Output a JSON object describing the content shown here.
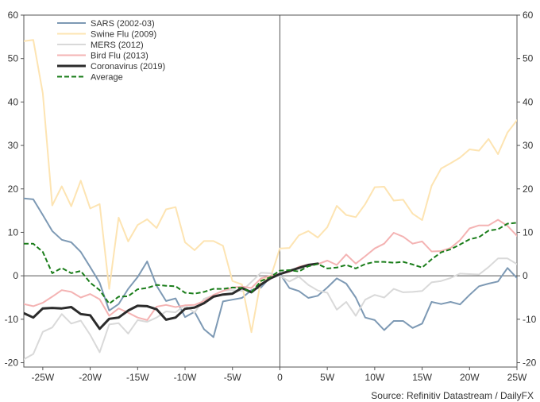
{
  "chart_data": {
    "type": "line",
    "source": "Source: Refinitiv Datastream / DailyFX",
    "xlim": [
      -27,
      25
    ],
    "ylim": [
      -21,
      60
    ],
    "x_ticks": [
      -25,
      -20,
      -15,
      -10,
      -5,
      0,
      5,
      10,
      15,
      20,
      25
    ],
    "x_tick_labels": [
      "-25W",
      "-20W",
      "-15W",
      "-10W",
      "-5W",
      "0",
      "5W",
      "10W",
      "15W",
      "20W",
      "25W"
    ],
    "y_ticks": [
      -20,
      -10,
      0,
      10,
      20,
      30,
      40,
      50,
      60
    ],
    "y_tick_labels": [
      "-20",
      "-10",
      "0",
      "10",
      "20",
      "30",
      "40",
      "50",
      "60"
    ],
    "grid": false,
    "zero_lines": true,
    "legend_position": "top-left",
    "series": [
      {
        "name": "SARS (2002-03)",
        "color": "#7d99b4",
        "style": "solid",
        "width": 2,
        "x": [
          -27,
          -26,
          -25,
          -24,
          -23,
          -22,
          -21,
          -20,
          -19,
          -18,
          -17,
          -16,
          -15,
          -14,
          -13,
          -12,
          -11,
          -10,
          -9,
          -8,
          -7,
          -6,
          -5,
          -4,
          -3,
          -2,
          -1,
          0,
          1,
          2,
          3,
          4,
          5,
          6,
          7,
          8,
          9,
          10,
          11,
          12,
          13,
          14,
          15,
          16,
          17,
          18,
          19,
          20,
          21,
          22,
          23,
          24,
          25
        ],
        "y": [
          17.8,
          17.6,
          14,
          10.3,
          8.3,
          7.7,
          5.5,
          2,
          -1.6,
          -8,
          -6.5,
          -3,
          -0.3,
          3.3,
          -2.3,
          -5.8,
          -5.2,
          -9.5,
          -8.3,
          -12.3,
          -14.1,
          -5.9,
          -5.5,
          -5.1,
          -3.3,
          -2.7,
          -0.3,
          0.5,
          -2.8,
          -3.5,
          -5.1,
          -4.6,
          -2.7,
          -0.6,
          -1.8,
          -5,
          -9.6,
          -10.2,
          -12.5,
          -10.4,
          -10.4,
          -12,
          -11,
          -6,
          -6.5,
          -6,
          -6.6,
          -4.4,
          -2.4,
          -1.8,
          -1.3,
          1.8,
          -0.5
        ]
      },
      {
        "name": "Swine Flu (2009)",
        "color": "#fde4b2",
        "style": "solid",
        "width": 2,
        "x": [
          -27,
          -26,
          -25,
          -24,
          -23,
          -22,
          -21,
          -20,
          -19,
          -18,
          -17,
          -16,
          -15,
          -14,
          -13,
          -12,
          -11,
          -10,
          -9,
          -8,
          -7,
          -6,
          -5,
          -4,
          -3,
          -2,
          -1,
          0,
          1,
          2,
          3,
          4,
          5,
          6,
          7,
          8,
          9,
          10,
          11,
          12,
          13,
          14,
          15,
          16,
          17,
          18,
          19,
          20,
          21,
          22,
          23,
          24,
          25
        ],
        "y": [
          54,
          54.3,
          42,
          16.2,
          20.6,
          16,
          21.9,
          15.5,
          16.5,
          -3,
          13.4,
          7.9,
          11.7,
          13,
          11,
          15.3,
          15.8,
          7.7,
          5.9,
          8,
          8,
          6.9,
          -1.2,
          -2,
          -13,
          -1,
          -0.5,
          6.3,
          6.4,
          9.3,
          10.3,
          8.8,
          11.2,
          16.1,
          14,
          13.5,
          16.5,
          20.4,
          20.5,
          17.3,
          17.5,
          14.3,
          12.8,
          20.7,
          24.7,
          25.9,
          27.2,
          29.1,
          28.8,
          31.5,
          28,
          33,
          35.8
        ]
      },
      {
        "name": "MERS (2012)",
        "color": "#d9d9d9",
        "style": "solid",
        "width": 2,
        "x": [
          -27,
          -26,
          -25,
          -24,
          -23,
          -22,
          -21,
          -20,
          -19,
          -18,
          -17,
          -16,
          -15,
          -14,
          -13,
          -12,
          -11,
          -10,
          -9,
          -8,
          -7,
          -6,
          -5,
          -4,
          -3,
          -2,
          -1,
          0,
          1,
          2,
          3,
          4,
          5,
          6,
          7,
          8,
          9,
          10,
          11,
          12,
          13,
          14,
          15,
          16,
          17,
          18,
          19,
          20,
          21,
          22,
          23,
          24,
          25
        ],
        "y": [
          -19.2,
          -18,
          -12.9,
          -11.9,
          -8.8,
          -11,
          -10.3,
          -13.6,
          -17.6,
          -11.2,
          -10.9,
          -13.3,
          -10.2,
          -10.6,
          -9.6,
          -8.2,
          -8.4,
          -6.8,
          -8.5,
          -5.3,
          -4.5,
          -3.4,
          -3.3,
          -3.5,
          -1.4,
          0.7,
          0.6,
          0,
          -1.3,
          -0.2,
          -2.1,
          -3.4,
          -3.9,
          -7.8,
          -6,
          -9.2,
          -5.5,
          -4.4,
          -5,
          -3,
          -3.8,
          -3.7,
          -3.5,
          -1.5,
          -1.2,
          -0.5,
          0.5,
          0.4,
          0.3,
          2,
          4,
          4,
          2.7
        ]
      },
      {
        "name": "Bird Flu (2013)",
        "color": "#f4b3b3",
        "style": "solid",
        "width": 2,
        "x": [
          -27,
          -26,
          -25,
          -24,
          -23,
          -22,
          -21,
          -20,
          -19,
          -18,
          -17,
          -16,
          -15,
          -14,
          -13,
          -12,
          -11,
          -10,
          -9,
          -8,
          -7,
          -6,
          -5,
          -4,
          -3,
          -2,
          -1,
          0,
          1,
          2,
          3,
          4,
          5,
          6,
          7,
          8,
          9,
          10,
          11,
          12,
          13,
          14,
          15,
          16,
          17,
          18,
          19,
          20,
          21,
          22,
          23,
          24,
          25
        ],
        "y": [
          -6.5,
          -7,
          -6.2,
          -4.8,
          -3.3,
          -3.7,
          -5,
          -4.2,
          -5.4,
          -9.2,
          -7.5,
          -8.5,
          -9.6,
          -10.2,
          -7.1,
          -6.7,
          -7.2,
          -6.8,
          -6.7,
          -5.8,
          -4.4,
          -3.5,
          -2.7,
          -2.5,
          -2.8,
          -0.6,
          0,
          0.4,
          0.9,
          2.1,
          2.6,
          2.7,
          3.5,
          2.5,
          4.9,
          2.8,
          4.5,
          6.3,
          7.4,
          9.9,
          9,
          7.4,
          7.9,
          5.6,
          5.7,
          6.4,
          8.2,
          10.9,
          11.6,
          11.6,
          12.9,
          11.5,
          9.2
        ]
      },
      {
        "name": "Coronavirus (2019)",
        "color": "#2b2b2b",
        "style": "solid",
        "width": 3,
        "x": [
          -27,
          -26,
          -25,
          -24,
          -23,
          -22,
          -21,
          -20,
          -19,
          -18,
          -17,
          -16,
          -15,
          -14,
          -13,
          -12,
          -11,
          -10,
          -9,
          -8,
          -7,
          -6,
          -5,
          -4,
          -3,
          -2,
          -1,
          0,
          1,
          2,
          3,
          4
        ],
        "y": [
          -8.6,
          -9.6,
          -7.5,
          -7.4,
          -7.5,
          -7.2,
          -8.8,
          -9.1,
          -12.2,
          -9.9,
          -9.6,
          -8,
          -6.9,
          -7,
          -7.7,
          -10.1,
          -9.6,
          -7.6,
          -7.3,
          -6.3,
          -4.8,
          -4.3,
          -4.1,
          -2.8,
          -3.8,
          -2,
          -0.6,
          0.4,
          1.1,
          1.8,
          2.5,
          2.8
        ]
      },
      {
        "name": "Average",
        "color": "#1a7d1a",
        "style": "dashed",
        "width": 2,
        "x": [
          -27,
          -26,
          -25,
          -24,
          -23,
          -22,
          -21,
          -20,
          -19,
          -18,
          -17,
          -16,
          -15,
          -14,
          -13,
          -12,
          -11,
          -10,
          -9,
          -8,
          -7,
          -6,
          -5,
          -4,
          -3,
          -2,
          -1,
          0,
          1,
          2,
          3,
          4,
          5,
          6,
          7,
          8,
          9,
          10,
          11,
          12,
          13,
          14,
          15,
          16,
          17,
          18,
          19,
          20,
          21,
          22,
          23,
          24,
          25
        ],
        "y": [
          7.4,
          7.4,
          5.5,
          0.6,
          1.8,
          0.6,
          1.1,
          -1.6,
          -3.3,
          -6.4,
          -4.8,
          -4.7,
          -3.1,
          -2.8,
          -2.1,
          -2.3,
          -2.4,
          -3.9,
          -4.1,
          -3.7,
          -3,
          -3,
          -2.7,
          -2.8,
          -3.8,
          -1.2,
          -0.3,
          1.2,
          1.3,
          1,
          2.2,
          2.7,
          1.7,
          1.9,
          2.5,
          1.7,
          2.7,
          3.2,
          3.2,
          3,
          3.2,
          2.6,
          1.9,
          3.8,
          5.4,
          6.1,
          7.2,
          8.4,
          8.9,
          10.4,
          10.7,
          12,
          12.2
        ]
      }
    ]
  }
}
